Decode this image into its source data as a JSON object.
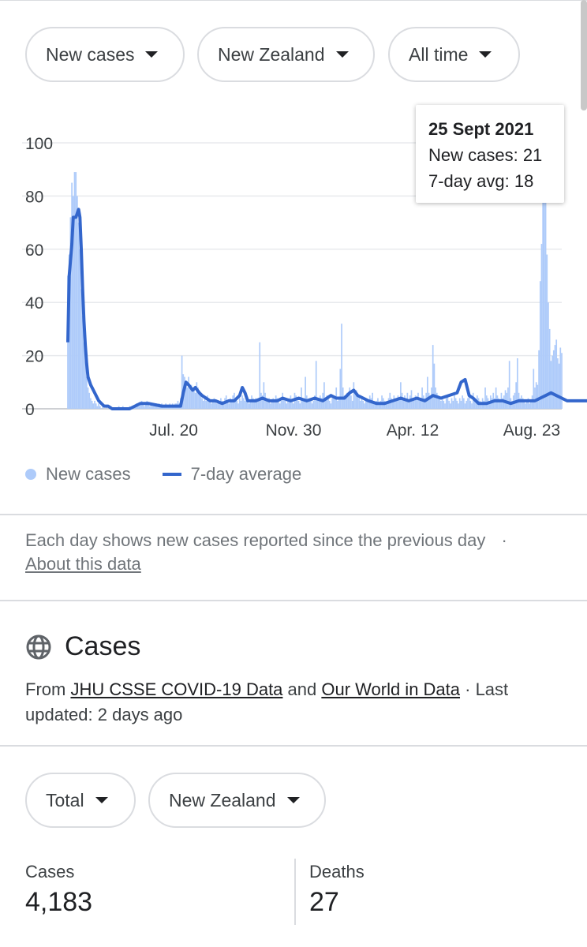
{
  "filters": {
    "metric": "New cases",
    "region": "New Zealand",
    "period": "All time"
  },
  "chart_data": {
    "type": "bar",
    "title": "",
    "xlabel": "",
    "ylabel": "",
    "ylim": [
      0,
      100
    ],
    "y_ticks": [
      0,
      20,
      40,
      60,
      80,
      100
    ],
    "x_ticks": [
      "Jul. 20",
      "Nov. 30",
      "Apr. 12",
      "Aug. 23"
    ],
    "grid": true,
    "legend_position": "bottom-left",
    "series": [
      {
        "name": "New cases",
        "kind": "bar",
        "color": "#aecbfa",
        "values": [
          50,
          58,
          72,
          85,
          80,
          89,
          89,
          80,
          70,
          60,
          45,
          35,
          25,
          18,
          12,
          8,
          6,
          4,
          3,
          2,
          3,
          2,
          1,
          2,
          1,
          0,
          1,
          0,
          0,
          1,
          0,
          0,
          1,
          0,
          0,
          0,
          0,
          0,
          1,
          0,
          0,
          1,
          0,
          0,
          0,
          0,
          1,
          0,
          0,
          1,
          1,
          2,
          2,
          1,
          2,
          3,
          2,
          1,
          2,
          3,
          2,
          1,
          2,
          1,
          1,
          2,
          2,
          1,
          2,
          1,
          2,
          1,
          1,
          2,
          1,
          1,
          2,
          1,
          2,
          1,
          2,
          2,
          3,
          2,
          4,
          20,
          13,
          12,
          10,
          8,
          12,
          8,
          9,
          7,
          8,
          6,
          10,
          8,
          6,
          5,
          4,
          3,
          4,
          3,
          5,
          4,
          3,
          2,
          3,
          4,
          3,
          2,
          3,
          2,
          4,
          3,
          2,
          4,
          5,
          3,
          2,
          4,
          3,
          5,
          6,
          4,
          3,
          2,
          4,
          3,
          5,
          4,
          3,
          6,
          4,
          2,
          3,
          5,
          4,
          3,
          4,
          3,
          4,
          25,
          6,
          5,
          10,
          6,
          4,
          3,
          4,
          2,
          3,
          4,
          3,
          5,
          4,
          3,
          2,
          3,
          6,
          4,
          3,
          2,
          3,
          4,
          5,
          3,
          2,
          6,
          5,
          4,
          3,
          2,
          8,
          4,
          3,
          12,
          5,
          3,
          4,
          3,
          2,
          3,
          5,
          18,
          4,
          3,
          5,
          4,
          6,
          10,
          4,
          5,
          4,
          3,
          2,
          4,
          5,
          4,
          8,
          3,
          4,
          15,
          32,
          8,
          5,
          4,
          6,
          5,
          8,
          5,
          3,
          10,
          6,
          7,
          5,
          4,
          3,
          4,
          3,
          2,
          4,
          3,
          3,
          5,
          4,
          6,
          3,
          2,
          3,
          4,
          2,
          3,
          5,
          4,
          3,
          2,
          3,
          4,
          6,
          4,
          3,
          5,
          4,
          3,
          5,
          4,
          10,
          6,
          4,
          5,
          4,
          6,
          3,
          5,
          7,
          4,
          3,
          5,
          4,
          6,
          3,
          4,
          8,
          5,
          4,
          6,
          12,
          6,
          4,
          8,
          24,
          17,
          8,
          6,
          5,
          4,
          3,
          4,
          3,
          2,
          4,
          5,
          3,
          2,
          4,
          3,
          5,
          4,
          3,
          2,
          4,
          3,
          5,
          4,
          2,
          3,
          4,
          5,
          3,
          2,
          6,
          4,
          3,
          5,
          4,
          3,
          2,
          4,
          3,
          8,
          5,
          4,
          3,
          5,
          4,
          6,
          4,
          8,
          5,
          4,
          3,
          6,
          4,
          5,
          7,
          6,
          8,
          18,
          4,
          3,
          5,
          6,
          10,
          19,
          6,
          4,
          5,
          4,
          3,
          2,
          3,
          4,
          2,
          3,
          5,
          15,
          8,
          10,
          9,
          22,
          48,
          62,
          84,
          89,
          79,
          58,
          40,
          30,
          18,
          20,
          22,
          24,
          26,
          19,
          17,
          23,
          21
        ]
      },
      {
        "name": "7-day average",
        "kind": "line",
        "color": "#3366cc",
        "points": [
          [
            0,
            25
          ],
          [
            1,
            50
          ],
          [
            3,
            62
          ],
          [
            4,
            72
          ],
          [
            6,
            72
          ],
          [
            8,
            75
          ],
          [
            9,
            72
          ],
          [
            10,
            60
          ],
          [
            11,
            45
          ],
          [
            12,
            33
          ],
          [
            13,
            24
          ],
          [
            14,
            17
          ],
          [
            15,
            12
          ],
          [
            17,
            9
          ],
          [
            19,
            7
          ],
          [
            21,
            5
          ],
          [
            23,
            3
          ],
          [
            25,
            2
          ],
          [
            27,
            1
          ],
          [
            30,
            1
          ],
          [
            33,
            0
          ],
          [
            46,
            0
          ],
          [
            50,
            1
          ],
          [
            54,
            2
          ],
          [
            60,
            2
          ],
          [
            70,
            1
          ],
          [
            80,
            1
          ],
          [
            84,
            1
          ],
          [
            86,
            6
          ],
          [
            88,
            10
          ],
          [
            90,
            9
          ],
          [
            93,
            7
          ],
          [
            95,
            8
          ],
          [
            98,
            6
          ],
          [
            100,
            5
          ],
          [
            103,
            4
          ],
          [
            106,
            3
          ],
          [
            110,
            3
          ],
          [
            115,
            2
          ],
          [
            120,
            3
          ],
          [
            124,
            3
          ],
          [
            128,
            5
          ],
          [
            130,
            8
          ],
          [
            132,
            6
          ],
          [
            134,
            3
          ],
          [
            140,
            3
          ],
          [
            145,
            4
          ],
          [
            150,
            3
          ],
          [
            156,
            3
          ],
          [
            160,
            4
          ],
          [
            166,
            3
          ],
          [
            172,
            4
          ],
          [
            178,
            3
          ],
          [
            184,
            4
          ],
          [
            190,
            3
          ],
          [
            196,
            5
          ],
          [
            200,
            4
          ],
          [
            206,
            4
          ],
          [
            210,
            6
          ],
          [
            213,
            7
          ],
          [
            216,
            5
          ],
          [
            220,
            4
          ],
          [
            224,
            3
          ],
          [
            230,
            2
          ],
          [
            236,
            2
          ],
          [
            242,
            3
          ],
          [
            248,
            4
          ],
          [
            254,
            3
          ],
          [
            260,
            4
          ],
          [
            266,
            3
          ],
          [
            272,
            5
          ],
          [
            278,
            4
          ],
          [
            284,
            5
          ],
          [
            290,
            6
          ],
          [
            293,
            10
          ],
          [
            296,
            11
          ],
          [
            299,
            5
          ],
          [
            302,
            4
          ],
          [
            306,
            2
          ],
          [
            312,
            2
          ],
          [
            318,
            3
          ],
          [
            324,
            3
          ],
          [
            330,
            2
          ],
          [
            336,
            3
          ],
          [
            342,
            3
          ],
          [
            348,
            3
          ],
          [
            352,
            4
          ],
          [
            356,
            5
          ],
          [
            360,
            6
          ],
          [
            364,
            5
          ],
          [
            368,
            4
          ],
          [
            372,
            3
          ],
          [
            376,
            3
          ],
          [
            380,
            3
          ],
          [
            384,
            3
          ],
          [
            388,
            3
          ],
          [
            390,
            5
          ],
          [
            393,
            15
          ],
          [
            396,
            40
          ],
          [
            398,
            60
          ],
          [
            400,
            65
          ],
          [
            402,
            55
          ],
          [
            404,
            35
          ],
          [
            406,
            22
          ],
          [
            408,
            20
          ],
          [
            410,
            21
          ],
          [
            412,
            20
          ],
          [
            414,
            19
          ],
          [
            415,
            18
          ]
        ]
      }
    ],
    "highlight": {
      "date": "25 Sept 2021",
      "new_cases": 21,
      "avg": 18
    }
  },
  "tooltip": {
    "date": "25 Sept 2021",
    "new_cases_line": "New cases: 21",
    "avg_line": "7-day avg: 18"
  },
  "legend": {
    "cases": "New cases",
    "avg": "7-day average"
  },
  "note": {
    "text": "Each day shows new cases reported since the previous day",
    "sep": "·",
    "link": "About this data"
  },
  "section": {
    "title": "Cases",
    "source_prefix": "From ",
    "source_link1": "JHU CSSE COVID-19 Data",
    "source_and": " and ",
    "source_link2": "Our World in Data",
    "source_suffix": " · Last updated: 2 days ago"
  },
  "filters2": {
    "type": "Total",
    "region": "New Zealand"
  },
  "stats": {
    "cases_label": "Cases",
    "cases_value": "4,183",
    "deaths_label": "Deaths",
    "deaths_value": "27"
  }
}
